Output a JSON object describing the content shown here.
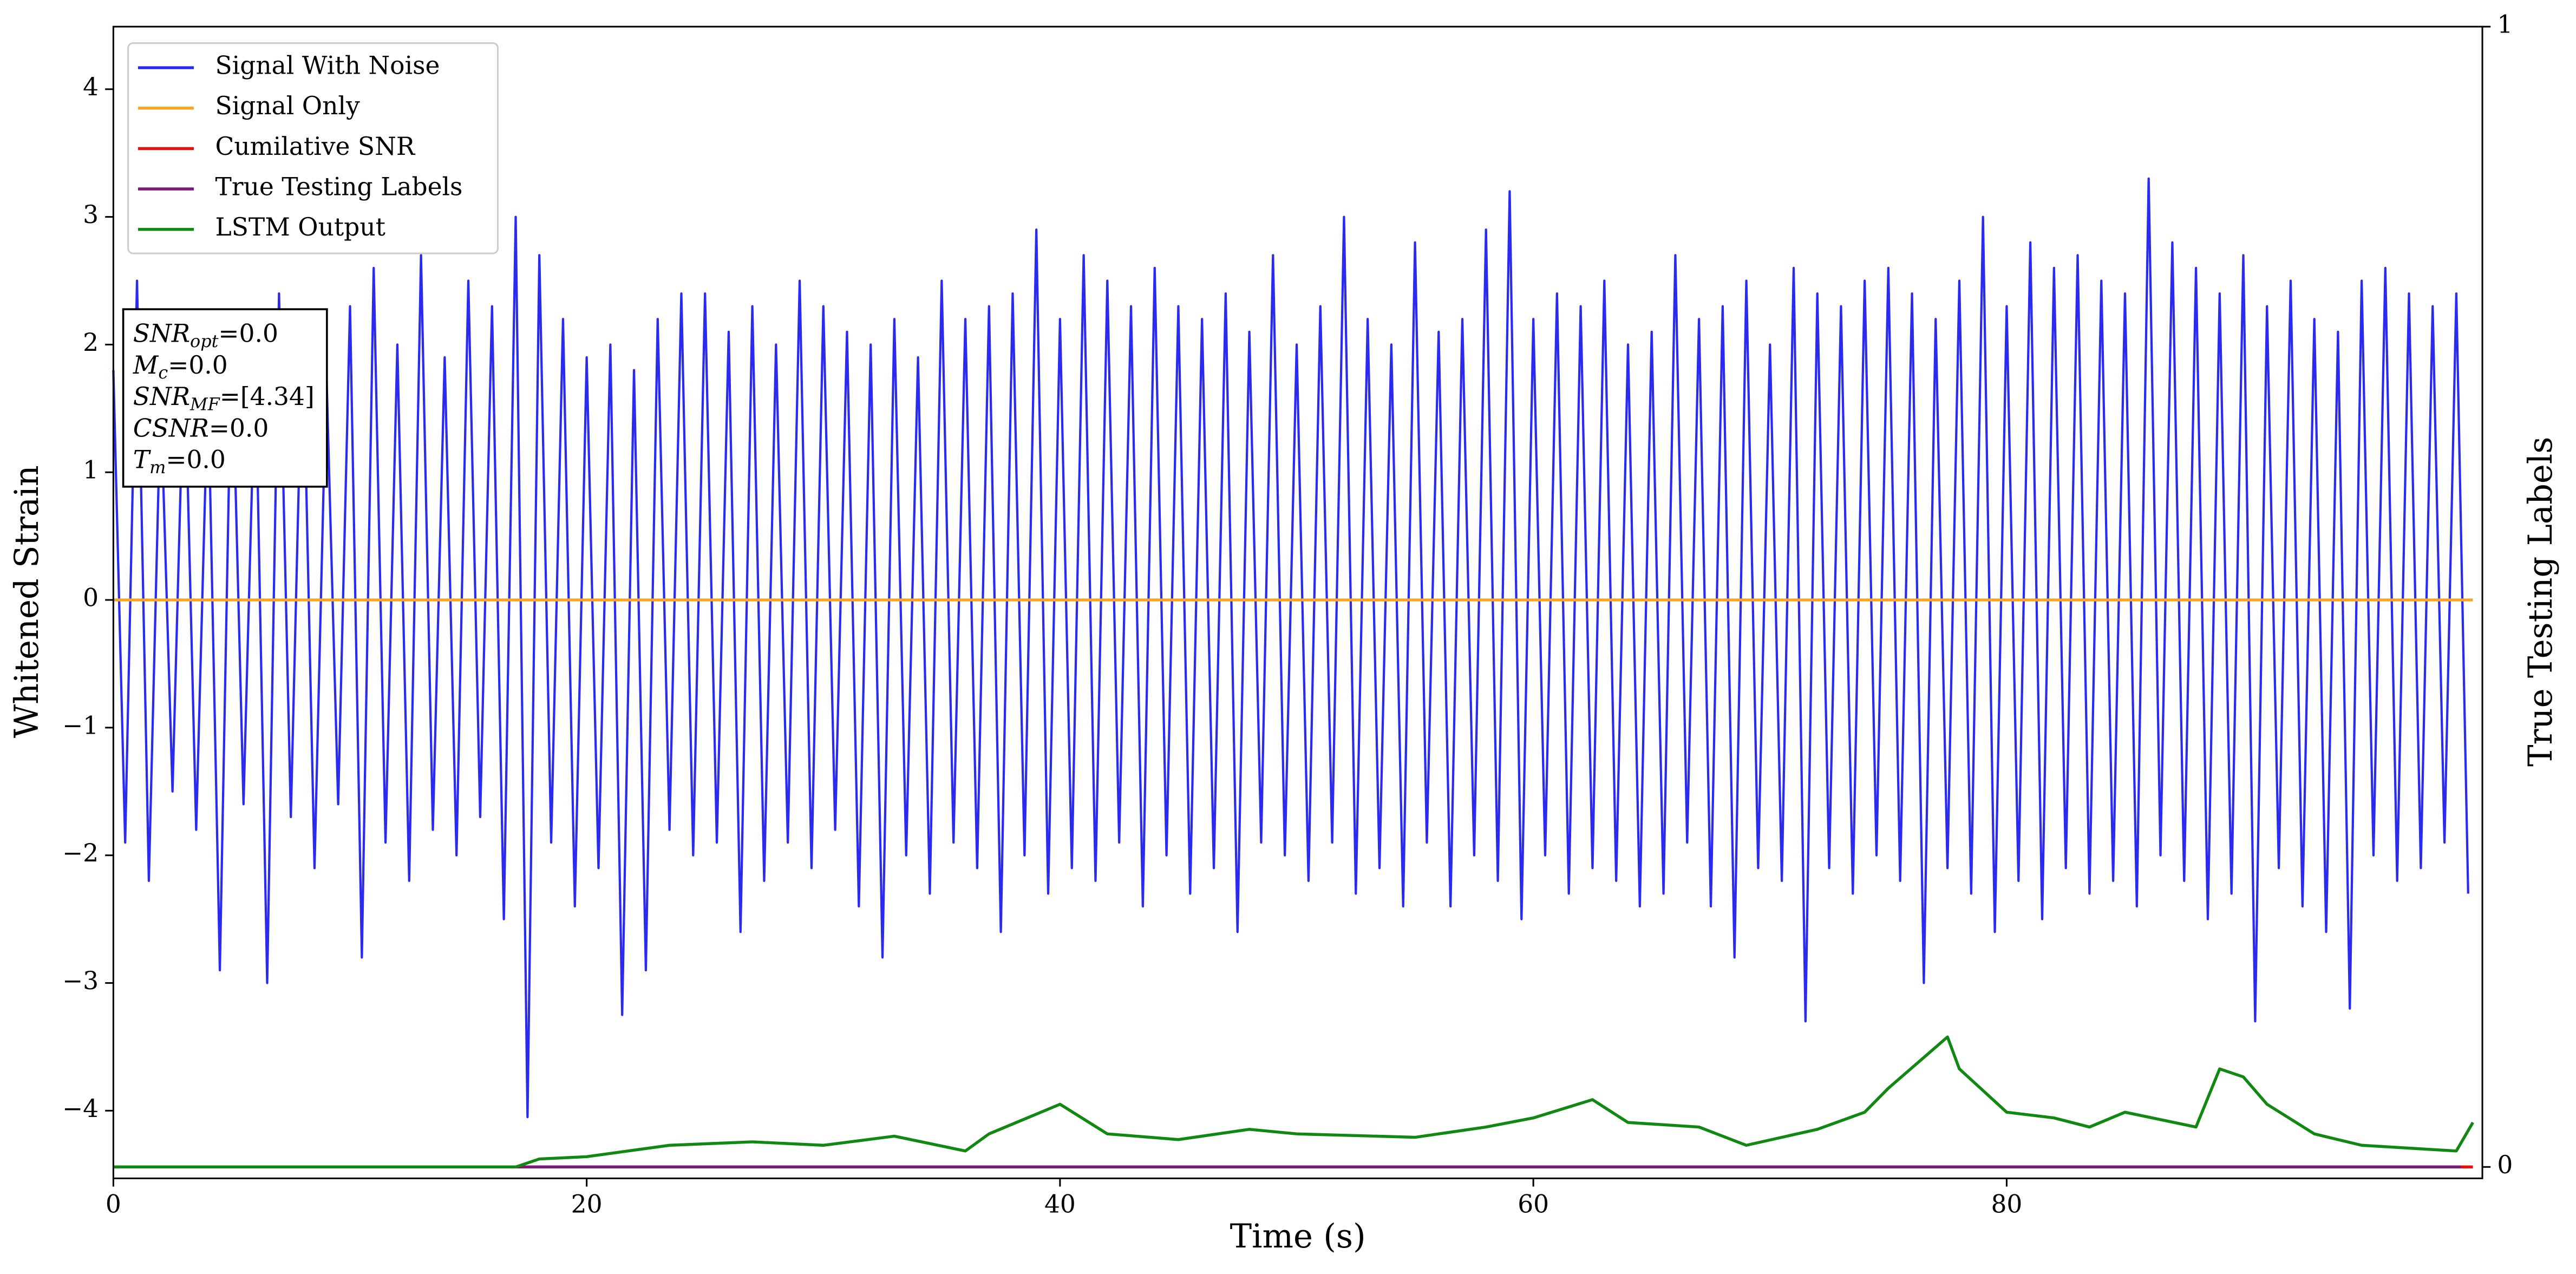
{
  "chart_data": {
    "type": "line",
    "xlabel": "Time (s)",
    "ylabel": "Whitened Strain",
    "y2label": "True Testing Labels",
    "xlim": [
      0,
      100.1
    ],
    "ylim": [
      -4.53,
      4.49
    ],
    "y2lim": [
      -0.01,
      1
    ],
    "xticks": [
      0,
      20,
      40,
      60,
      80
    ],
    "yticks": [
      {
        "value": -4,
        "label": "−4"
      },
      {
        "value": -3,
        "label": "−3"
      },
      {
        "value": -2,
        "label": "−2"
      },
      {
        "value": -1,
        "label": "−1"
      },
      0,
      1,
      2,
      3,
      4
    ],
    "y2ticks": [
      0,
      1
    ],
    "legend": "upper left",
    "annotation": [
      {
        "base": "SNR",
        "sub": "opt",
        "rest": "=0.0"
      },
      {
        "base": "M",
        "sub": "c",
        "rest": "=0.0"
      },
      {
        "base": "SNR",
        "sub": "MF",
        "rest": "=[4.34]"
      },
      {
        "base": "CSNR",
        "sub": "",
        "rest": "=0.0"
      },
      {
        "base": "T",
        "sub": "m",
        "rest": "=0.0"
      }
    ],
    "series": [
      {
        "name": "Signal With Noise",
        "color": "#2b2bf0",
        "x": [
          0,
          0.5,
          1,
          1.5,
          2,
          2.5,
          3,
          3.5,
          4,
          4.5,
          5,
          5.5,
          6,
          6.5,
          7,
          7.5,
          8,
          8.5,
          9,
          9.5,
          10,
          10.5,
          11,
          11.5,
          12,
          12.5,
          13,
          13.5,
          14,
          14.5,
          15,
          15.5,
          16,
          16.5,
          17,
          17.5,
          18,
          18.5,
          19,
          19.5,
          20,
          20.5,
          21,
          21.5,
          22,
          22.5,
          23,
          23.5,
          24,
          24.5,
          25,
          25.5,
          26,
          26.5,
          27,
          27.5,
          28,
          28.5,
          29,
          29.5,
          30,
          30.5,
          31,
          31.5,
          32,
          32.5,
          33,
          33.5,
          34,
          34.5,
          35,
          35.5,
          36,
          36.5,
          37,
          37.5,
          38,
          38.5,
          39,
          39.5,
          40,
          40.5,
          41,
          41.5,
          42,
          42.5,
          43,
          43.5,
          44,
          44.5,
          45,
          45.5,
          46,
          46.5,
          47,
          47.5,
          48,
          48.5,
          49,
          49.5,
          50,
          50.5,
          51,
          51.5,
          52,
          52.5,
          53,
          53.5,
          54,
          54.5,
          55,
          55.5,
          56,
          56.5,
          57,
          57.5,
          58,
          58.5,
          59,
          59.5,
          60,
          60.5,
          61,
          61.5,
          62,
          62.5,
          63,
          63.5,
          64,
          64.5,
          65,
          65.5,
          66,
          66.5,
          67,
          67.5,
          68,
          68.5,
          69,
          69.5,
          70,
          70.5,
          71,
          71.5,
          72,
          72.5,
          73,
          73.5,
          74,
          74.5,
          75,
          75.5,
          76,
          76.5,
          77,
          77.5,
          78,
          78.5,
          79,
          79.5,
          80,
          80.5,
          81,
          81.5,
          82,
          82.5,
          83,
          83.5,
          84,
          84.5,
          85,
          85.5,
          86,
          86.5,
          87,
          87.5,
          88,
          88.5,
          89,
          89.5,
          90,
          90.5,
          91,
          91.5,
          92,
          92.5,
          93,
          93.5,
          94,
          94.5,
          95,
          95.5,
          96,
          96.5,
          97,
          97.5,
          98,
          98.5,
          99,
          99.5
        ],
        "values": [
          1.8,
          -1.9,
          2.5,
          -2.2,
          1.6,
          -1.5,
          2.0,
          -1.8,
          1.7,
          -2.9,
          2.1,
          -1.6,
          1.9,
          -3.0,
          2.4,
          -1.7,
          2.2,
          -2.1,
          1.8,
          -1.6,
          2.3,
          -2.8,
          2.6,
          -1.9,
          2.0,
          -2.2,
          2.7,
          -1.8,
          1.9,
          -2.0,
          2.5,
          -1.7,
          2.3,
          -2.5,
          3.0,
          -4.05,
          2.7,
          -1.9,
          2.2,
          -2.4,
          1.9,
          -2.1,
          2.0,
          -3.25,
          1.8,
          -2.9,
          2.2,
          -1.8,
          2.4,
          -2.0,
          2.4,
          -1.9,
          2.1,
          -2.6,
          2.3,
          -2.2,
          2.0,
          -1.9,
          2.5,
          -2.1,
          2.3,
          -1.8,
          2.1,
          -2.4,
          2.0,
          -2.8,
          2.2,
          -2.0,
          1.9,
          -2.3,
          2.5,
          -1.9,
          2.2,
          -2.1,
          2.3,
          -2.6,
          2.4,
          -2.0,
          2.9,
          -2.3,
          2.2,
          -2.1,
          2.7,
          -2.2,
          2.5,
          -1.9,
          2.3,
          -2.4,
          2.6,
          -2.0,
          2.3,
          -2.3,
          2.2,
          -2.1,
          2.4,
          -2.6,
          2.1,
          -1.9,
          2.7,
          -2.0,
          2.0,
          -2.2,
          2.3,
          -1.9,
          3.0,
          -2.3,
          2.2,
          -2.1,
          2.0,
          -2.4,
          2.8,
          -1.9,
          2.1,
          -2.4,
          2.2,
          -2.0,
          2.9,
          -2.2,
          3.2,
          -2.5,
          2.2,
          -2.0,
          2.4,
          -2.3,
          2.3,
          -2.1,
          2.5,
          -2.2,
          2.0,
          -2.4,
          2.1,
          -2.3,
          2.7,
          -1.9,
          2.2,
          -2.4,
          2.3,
          -2.8,
          2.5,
          -2.1,
          2.0,
          -2.2,
          2.6,
          -3.3,
          2.4,
          -2.1,
          2.3,
          -2.3,
          2.5,
          -2.0,
          2.6,
          -2.2,
          2.4,
          -3.0,
          2.2,
          -2.1,
          2.5,
          -2.3,
          3.0,
          -2.6,
          2.3,
          -2.2,
          2.8,
          -2.5,
          2.6,
          -2.1,
          2.7,
          -2.3,
          2.5,
          -2.2,
          2.4,
          -2.4,
          3.3,
          -2.0,
          2.8,
          -2.2,
          2.6,
          -2.5,
          2.4,
          -2.3,
          2.7,
          -3.3,
          2.3,
          -2.1,
          2.5,
          -2.4,
          2.2,
          -2.6,
          2.1,
          -3.2,
          2.5,
          -2.0,
          2.6,
          -2.2,
          2.4,
          -2.1,
          2.3,
          -1.9,
          2.4,
          -2.3
        ]
      },
      {
        "name": "Signal Only",
        "color": "#f5a623",
        "x": [
          0,
          99.7
        ],
        "values": [
          0,
          0
        ]
      },
      {
        "name": "Cumilative SNR",
        "color": "#e8100f",
        "axis": "y2",
        "x": [
          0,
          99.7
        ],
        "values": [
          0,
          0
        ]
      },
      {
        "name": "True Testing Labels",
        "color": "#7b1a7b",
        "axis": "y2",
        "x": [
          0,
          99.2
        ],
        "values": [
          0,
          0
        ]
      },
      {
        "name": "LSTM Output",
        "color": "#118811",
        "axis": "y2",
        "x": [
          0,
          17,
          18,
          20,
          23.5,
          27,
          30,
          33,
          36,
          37,
          40,
          42,
          45,
          48,
          50,
          55,
          58,
          60,
          62.5,
          64,
          67,
          69,
          72,
          74,
          75,
          77.5,
          78,
          80,
          82,
          83.5,
          85,
          88,
          89,
          90,
          91,
          93,
          95,
          99,
          99.7
        ],
        "values": [
          0,
          0,
          0.007,
          0.009,
          0.019,
          0.022,
          0.019,
          0.027,
          0.014,
          0.029,
          0.055,
          0.029,
          0.024,
          0.033,
          0.029,
          0.026,
          0.035,
          0.043,
          0.059,
          0.039,
          0.035,
          0.019,
          0.033,
          0.048,
          0.069,
          0.114,
          0.086,
          0.048,
          0.043,
          0.035,
          0.048,
          0.035,
          0.086,
          0.079,
          0.055,
          0.029,
          0.019,
          0.014,
          0.039
        ]
      }
    ]
  }
}
